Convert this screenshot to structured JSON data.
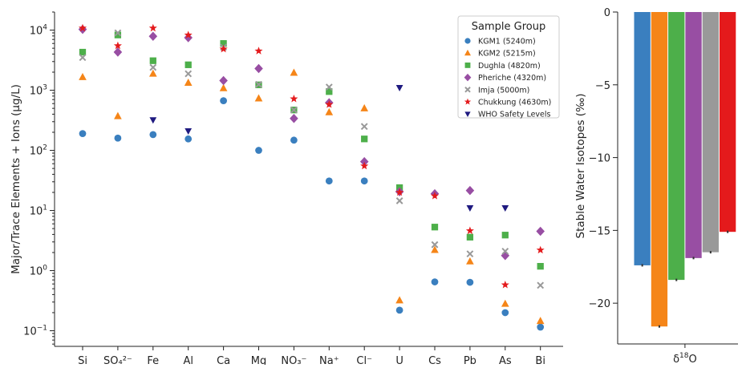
{
  "chart_data": [
    {
      "type": "scatter",
      "ylabel": "Major/Trace Elements + Ions (μg/L)",
      "yscale": "log",
      "ylim": [
        0.055,
        20000
      ],
      "categories": [
        "Si",
        "SO₄²⁻",
        "Fe",
        "Al",
        "Ca",
        "Mg",
        "NO₃⁻",
        "Na⁺",
        "Cl⁻",
        "U",
        "Cs",
        "Pb",
        "As",
        "Bi"
      ],
      "yticks": [
        {
          "value": 0.1,
          "base": "10",
          "exp": "−1"
        },
        {
          "value": 1,
          "base": "10",
          "exp": "0"
        },
        {
          "value": 10,
          "base": "10",
          "exp": "1"
        },
        {
          "value": 100,
          "base": "10",
          "exp": "2"
        },
        {
          "value": 1000,
          "base": "10",
          "exp": "3"
        },
        {
          "value": 10000,
          "base": "10",
          "exp": "4"
        }
      ],
      "legend": {
        "title": "Sample Group",
        "placement": "top-right"
      },
      "series": [
        {
          "name": "KGM1 (5240m)",
          "marker": "circle",
          "color": "#3a7fbf",
          "values": [
            190,
            160,
            183,
            155,
            670,
            100,
            148,
            31,
            31,
            0.22,
            0.65,
            0.64,
            0.2,
            0.115
          ]
        },
        {
          "name": "KGM2 (5215m)",
          "marker": "triangle-up",
          "color": "#f58518",
          "values": [
            1650,
            370,
            1880,
            1330,
            1080,
            730,
            1950,
            430,
            500,
            0.32,
            2.2,
            1.42,
            0.28,
            0.145
          ]
        },
        {
          "name": "Dughla (4820m)",
          "marker": "square",
          "color": "#4daf4a",
          "values": [
            4300,
            8300,
            3100,
            2650,
            6000,
            1230,
            470,
            950,
            155,
            24,
            5.3,
            3.6,
            3.9,
            1.18
          ]
        },
        {
          "name": "Pheriche (4320m)",
          "marker": "diamond",
          "color": "#984ea3",
          "values": [
            10300,
            4300,
            7900,
            7500,
            1450,
            2300,
            340,
            620,
            65,
            20.5,
            19,
            21.5,
            1.78,
            4.5
          ]
        },
        {
          "name": "Imja (5000m)",
          "marker": "x",
          "color": "#999999",
          "values": [
            3500,
            9000,
            2400,
            1880,
            5200,
            1250,
            470,
            1130,
            250,
            14.5,
            2.7,
            1.9,
            2.1,
            0.57
          ]
        },
        {
          "name": "Chukkung (4630m)",
          "marker": "star",
          "color": "#e41a1c",
          "values": [
            10800,
            5500,
            10800,
            8300,
            4850,
            4500,
            720,
            580,
            55,
            20,
            17.5,
            4.6,
            0.58,
            2.2
          ]
        },
        {
          "name": "WHO Safety Levels",
          "marker": "triangle-down",
          "color": "#1f1a80",
          "values": [
            null,
            null,
            320,
            210,
            null,
            null,
            null,
            null,
            null,
            1100,
            null,
            11,
            11,
            null
          ]
        }
      ]
    },
    {
      "type": "bar",
      "ylabel": "Stable Water Isotopes (‰)",
      "ylim": [
        -22.8,
        0
      ],
      "yticks": [
        0,
        -5,
        -10,
        -15,
        -20
      ],
      "yticklabels": [
        "0",
        "−5",
        "−10",
        "−15",
        "−20"
      ],
      "xlabel": "δ¹⁸O",
      "xlabel_base": "δ",
      "xlabel_sup": "18",
      "xlabel_tail": "O",
      "series": [
        {
          "name": "KGM1 (5240m)",
          "color": "#3a7fbf",
          "value": -17.4
        },
        {
          "name": "KGM2 (5215m)",
          "color": "#f58518",
          "value": -21.6
        },
        {
          "name": "Dughla (4820m)",
          "color": "#4daf4a",
          "value": -18.4
        },
        {
          "name": "Pheriche (4320m)",
          "color": "#984ea3",
          "value": -16.9
        },
        {
          "name": "Imja (5000m)",
          "color": "#999999",
          "value": -16.5
        },
        {
          "name": "Chukkung (4630m)",
          "color": "#e41a1c",
          "value": -15.1
        }
      ]
    }
  ]
}
